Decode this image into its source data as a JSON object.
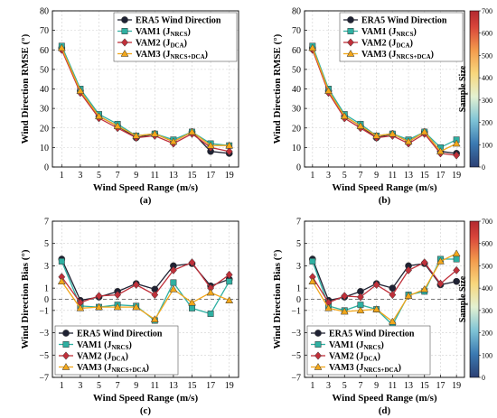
{
  "colors": {
    "era5": "#1f2233",
    "vam1": "#2fb0a2",
    "vam2": "#c0303a",
    "vam3": "#f2a71b",
    "grid": "#cfcfcf"
  },
  "colorbar": {
    "label": "Sample Size",
    "min": 0,
    "max": 700,
    "ticks": [
      "0",
      "100",
      "200",
      "300",
      "400",
      "500",
      "600",
      "700"
    ],
    "colormap": "RdYlBu_r"
  },
  "chart_data": [
    {
      "type": "line",
      "panel": "(a)",
      "ylabel": "Wind Direction RMSE (°)",
      "xlabel": "Wind Speed Range (m/s)",
      "x": [
        1,
        3,
        5,
        7,
        9,
        11,
        13,
        15,
        17,
        19
      ],
      "xticks": [
        "1",
        "3",
        "5",
        "7",
        "9",
        "11",
        "13",
        "15",
        "17",
        "19"
      ],
      "ylim": [
        0,
        80
      ],
      "yticks": [
        "0",
        "10",
        "20",
        "30",
        "40",
        "50",
        "60",
        "70",
        "80"
      ],
      "grid": true,
      "legend": "top-right",
      "colorbar": false,
      "series": [
        {
          "key": "era5",
          "name": "ERA5 Wind Direction",
          "marker": "circle",
          "values": [
            61,
            39,
            26,
            21,
            15,
            17,
            13,
            18,
            8,
            7
          ]
        },
        {
          "key": "vam1",
          "name": "VAM1 (J",
          "sub": "NRCS",
          "marker": "square",
          "values": [
            62,
            40,
            27,
            22,
            16,
            17,
            14,
            18,
            12,
            11
          ]
        },
        {
          "key": "vam2",
          "name": "VAM2 (J",
          "sub": "DCA",
          "marker": "diamond",
          "values": [
            60,
            38,
            25,
            20,
            15,
            16,
            12,
            17,
            10,
            8
          ]
        },
        {
          "key": "vam3",
          "name": "VAM3 (J",
          "sub": "NRCS+DCA",
          "marker": "triangle",
          "values": [
            61,
            39,
            26,
            21,
            16,
            17,
            13,
            18,
            11,
            11
          ]
        }
      ]
    },
    {
      "type": "line",
      "panel": "(b)",
      "ylabel": "Wind Direction RMSE (°)",
      "xlabel": "Wind Speed Range (m/s)",
      "x": [
        1,
        3,
        5,
        7,
        9,
        11,
        13,
        15,
        17,
        19
      ],
      "xticks": [
        "1",
        "3",
        "5",
        "7",
        "9",
        "11",
        "13",
        "15",
        "17",
        "19"
      ],
      "ylim": [
        0,
        80
      ],
      "yticks": [
        "0",
        "10",
        "20",
        "30",
        "40",
        "50",
        "60",
        "70",
        "80"
      ],
      "grid": true,
      "legend": "top-right",
      "colorbar": true,
      "series": [
        {
          "key": "era5",
          "name": "ERA5 Wind Direction",
          "marker": "circle",
          "values": [
            61,
            39,
            26,
            21,
            15,
            17,
            13,
            18,
            8,
            7
          ]
        },
        {
          "key": "vam1",
          "name": "VAM1 (J",
          "sub": "NRCS",
          "marker": "square",
          "values": [
            62,
            40,
            27,
            22,
            16,
            17,
            14,
            18,
            10,
            14
          ]
        },
        {
          "key": "vam2",
          "name": "VAM2 (J",
          "sub": "DCA",
          "marker": "diamond",
          "values": [
            60,
            38,
            25,
            20,
            15,
            16,
            12,
            17,
            7,
            6
          ]
        },
        {
          "key": "vam3",
          "name": "VAM3 (J",
          "sub": "NRCS+DCA",
          "marker": "triangle",
          "values": [
            61,
            39,
            26,
            21,
            16,
            17,
            13,
            18,
            8,
            12
          ]
        }
      ]
    },
    {
      "type": "line",
      "panel": "(c)",
      "ylabel": "Wind Direction Bias (°)",
      "xlabel": "Wind Speed Range (m/s)",
      "x": [
        1,
        3,
        5,
        7,
        9,
        11,
        13,
        15,
        17,
        19
      ],
      "xticks": [
        "1",
        "3",
        "5",
        "7",
        "9",
        "11",
        "13",
        "15",
        "17",
        "19"
      ],
      "ylim": [
        -7,
        7
      ],
      "yticks": [
        "−7",
        "−5",
        "−3",
        "−1",
        "0",
        "1",
        "3",
        "5",
        "7"
      ],
      "yticks_values": [
        -7,
        -5,
        -3,
        -1,
        0,
        1,
        3,
        5,
        7
      ],
      "zero_line": true,
      "grid": true,
      "legend": "bottom-left",
      "colorbar": false,
      "series": [
        {
          "key": "era5",
          "name": "ERA5 Wind Direction",
          "marker": "circle",
          "values": [
            3.6,
            -0.1,
            0.2,
            0.7,
            1.4,
            0.9,
            3.0,
            3.2,
            1.2,
            1.8
          ]
        },
        {
          "key": "vam1",
          "name": "VAM1 (J",
          "sub": "NRCS",
          "marker": "square",
          "values": [
            3.4,
            -0.6,
            -0.7,
            -0.5,
            -0.6,
            -1.9,
            1.5,
            -0.8,
            -1.3,
            1.6
          ]
        },
        {
          "key": "vam2",
          "name": "VAM2 (J",
          "sub": "DCA",
          "marker": "diamond",
          "values": [
            2.0,
            -0.3,
            0.3,
            0.4,
            1.3,
            0.4,
            2.6,
            3.3,
            1.0,
            2.2
          ]
        },
        {
          "key": "vam3",
          "name": "VAM3 (J",
          "sub": "NRCS+DCA",
          "marker": "triangle",
          "values": [
            1.6,
            -0.8,
            -0.7,
            -0.7,
            -0.7,
            -1.8,
            0.9,
            -0.3,
            0.6,
            -0.1
          ]
        }
      ]
    },
    {
      "type": "line",
      "panel": "(d)",
      "ylabel": "Wind Direction Bias (°)",
      "xlabel": "Wind Speed Range (m/s)",
      "x": [
        1,
        3,
        5,
        7,
        9,
        11,
        13,
        15,
        17,
        19
      ],
      "xticks": [
        "1",
        "3",
        "5",
        "7",
        "9",
        "11",
        "13",
        "15",
        "17",
        "19"
      ],
      "ylim": [
        -7,
        7
      ],
      "yticks": [
        "−7",
        "−5",
        "−3",
        "−1",
        "0",
        "1",
        "3",
        "5",
        "7"
      ],
      "yticks_values": [
        -7,
        -5,
        -3,
        -1,
        0,
        1,
        3,
        5,
        7
      ],
      "zero_line": true,
      "grid": true,
      "legend": "bottom-left",
      "colorbar": true,
      "series": [
        {
          "key": "era5",
          "name": "ERA5 Wind Direction",
          "marker": "circle",
          "values": [
            3.6,
            -0.1,
            0.2,
            0.7,
            1.4,
            1.0,
            3.0,
            3.2,
            1.3,
            1.6
          ]
        },
        {
          "key": "vam1",
          "name": "VAM1 (J",
          "sub": "NRCS",
          "marker": "square",
          "values": [
            3.4,
            -0.6,
            -1.0,
            -0.5,
            -0.9,
            -2.3,
            0.4,
            0.7,
            3.6,
            3.6
          ]
        },
        {
          "key": "vam2",
          "name": "VAM2 (J",
          "sub": "DCA",
          "marker": "diamond",
          "values": [
            2.0,
            -0.3,
            0.3,
            0.2,
            1.3,
            0.4,
            2.6,
            3.3,
            1.4,
            2.6
          ]
        },
        {
          "key": "vam3",
          "name": "VAM3 (J",
          "sub": "NRCS+DCA",
          "marker": "triangle",
          "values": [
            1.6,
            -0.8,
            -1.1,
            -1.0,
            -0.9,
            -2.0,
            0.3,
            0.9,
            3.4,
            4.1
          ]
        }
      ]
    }
  ]
}
